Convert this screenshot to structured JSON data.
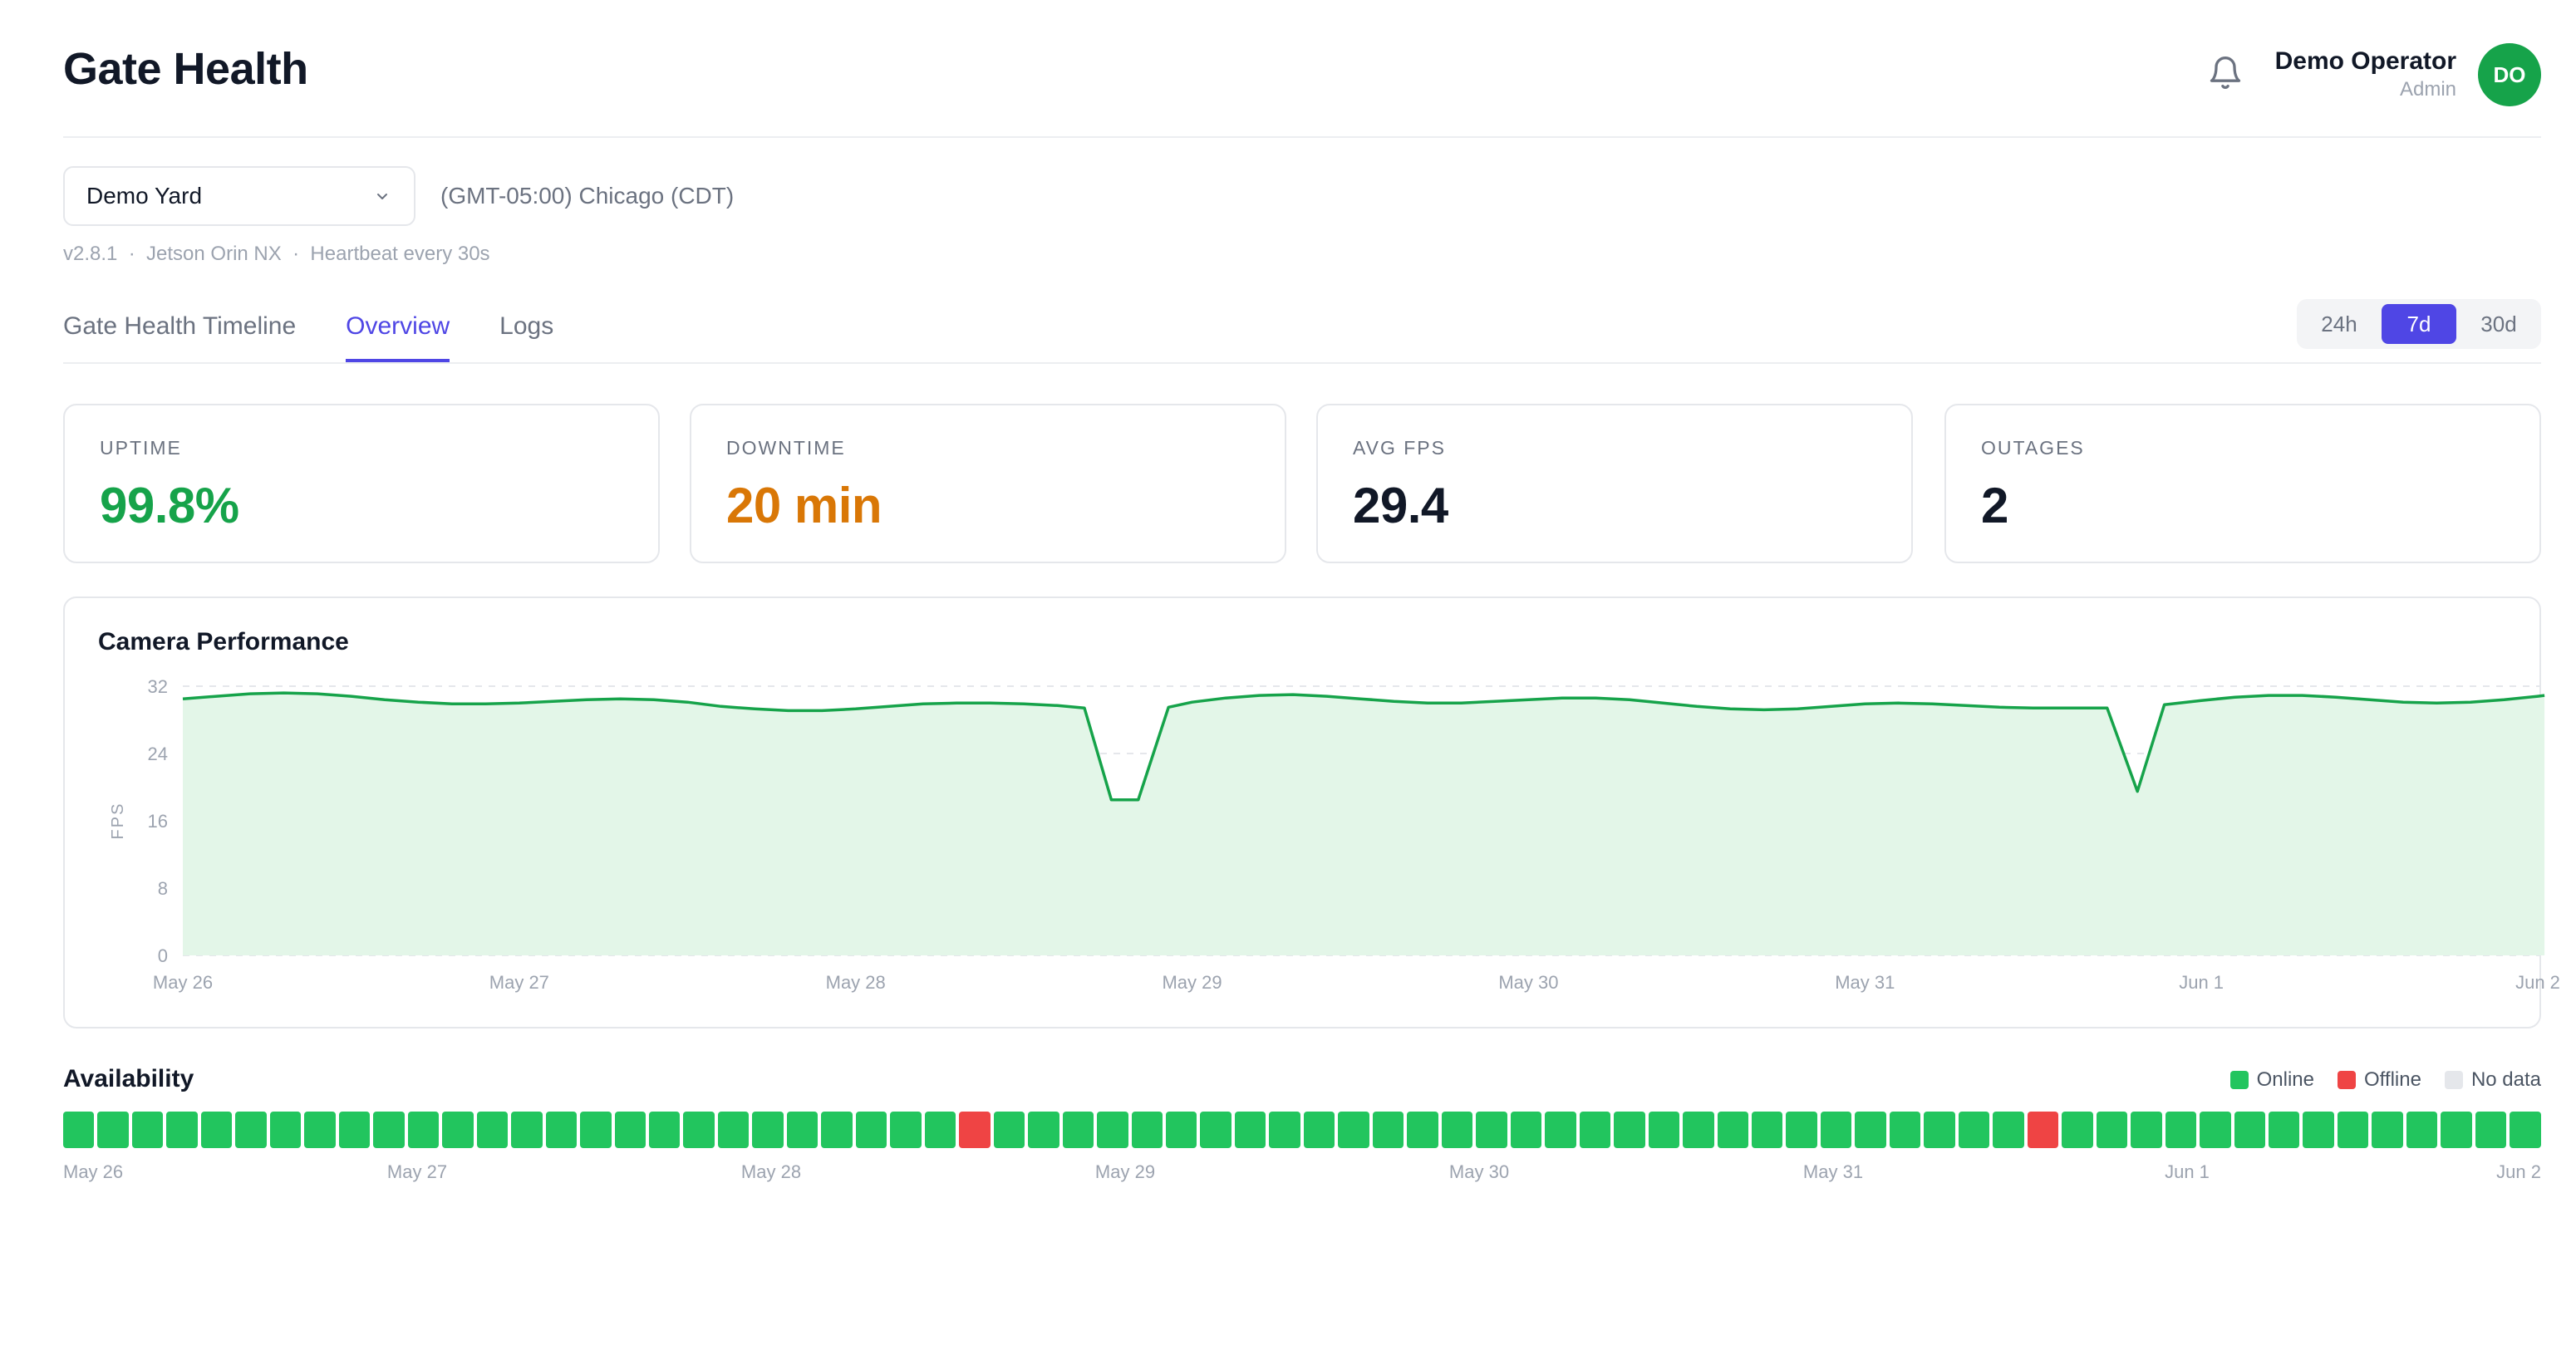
{
  "header": {
    "title": "Gate Health",
    "bell_icon": "bell-icon",
    "user_name": "Demo Operator",
    "user_role": "Admin",
    "avatar_initials": "DO",
    "avatar_color": "#16a34a"
  },
  "site": {
    "selected": "Demo Yard",
    "timezone": "(GMT-05:00) Chicago (CDT)",
    "meta": "v2.8.1  ·  Jetson Orin NX  ·  Heartbeat every 30s"
  },
  "tabs": [
    {
      "label": "Gate Health Timeline",
      "active": false
    },
    {
      "label": "Overview",
      "active": true
    },
    {
      "label": "Logs",
      "active": false
    }
  ],
  "range": {
    "options": [
      "24h",
      "7d",
      "30d"
    ],
    "selected": "7d"
  },
  "stats": [
    {
      "label": "UPTIME",
      "value": "99.8%",
      "color": "#16a34a"
    },
    {
      "label": "DOWNTIME",
      "value": "20 min",
      "color": "#d97706"
    },
    {
      "label": "AVG FPS",
      "value": "29.4",
      "color": "#111827"
    },
    {
      "label": "OUTAGES",
      "value": "2",
      "color": "#111827"
    }
  ],
  "chart_data": {
    "type": "area",
    "title": "Camera Performance",
    "ylabel": "FPS",
    "xlabel": "",
    "ylim": [
      0,
      32
    ],
    "yticks": [
      0,
      8,
      16,
      24,
      32
    ],
    "xlim": [
      0,
      7.02
    ],
    "xticks": [
      "May 26",
      "May 27",
      "May 28",
      "May 29",
      "May 30",
      "May 31",
      "Jun 1",
      "Jun 2"
    ],
    "grid": true,
    "color": "#16a34a",
    "fill": "#e3f6e8",
    "x": [
      0,
      0.1,
      0.2,
      0.3,
      0.4,
      0.5,
      0.6,
      0.7,
      0.8,
      0.9,
      1.0,
      1.1,
      1.2,
      1.3,
      1.4,
      1.5,
      1.6,
      1.7,
      1.8,
      1.9,
      2.0,
      2.1,
      2.2,
      2.3,
      2.4,
      2.5,
      2.6,
      2.68,
      2.76,
      2.84,
      2.93,
      3.0,
      3.1,
      3.2,
      3.3,
      3.4,
      3.5,
      3.6,
      3.7,
      3.8,
      3.9,
      4.0,
      4.1,
      4.2,
      4.3,
      4.4,
      4.5,
      4.6,
      4.7,
      4.8,
      4.9,
      5.0,
      5.1,
      5.2,
      5.3,
      5.4,
      5.5,
      5.6,
      5.72,
      5.81,
      5.89,
      6.0,
      6.1,
      6.2,
      6.3,
      6.4,
      6.5,
      6.6,
      6.7,
      6.8,
      6.9,
      7.0,
      7.02
    ],
    "y": [
      30.5,
      30.8,
      31.1,
      31.2,
      31.1,
      30.8,
      30.4,
      30.1,
      29.9,
      29.9,
      30.0,
      30.2,
      30.4,
      30.5,
      30.4,
      30.1,
      29.6,
      29.3,
      29.1,
      29.1,
      29.3,
      29.6,
      29.9,
      30.0,
      30.0,
      29.9,
      29.7,
      29.4,
      18.5,
      18.5,
      29.5,
      30.1,
      30.6,
      30.9,
      31.0,
      30.8,
      30.5,
      30.2,
      30.0,
      30.0,
      30.2,
      30.4,
      30.6,
      30.6,
      30.4,
      30.0,
      29.6,
      29.3,
      29.2,
      29.3,
      29.6,
      29.9,
      30.0,
      29.9,
      29.7,
      29.5,
      29.4,
      29.4,
      29.4,
      19.5,
      29.8,
      30.3,
      30.7,
      30.9,
      30.9,
      30.7,
      30.4,
      30.1,
      30.0,
      30.1,
      30.4,
      30.8,
      30.9
    ]
  },
  "availability": {
    "title": "Availability",
    "legend": [
      {
        "label": "Online",
        "color": "#22c55e"
      },
      {
        "label": "Offline",
        "color": "#ef4444"
      },
      {
        "label": "No data",
        "color": "#e5e7eb"
      }
    ],
    "blocks": [
      "online",
      "online",
      "online",
      "online",
      "online",
      "online",
      "online",
      "online",
      "online",
      "online",
      "online",
      "online",
      "online",
      "online",
      "online",
      "online",
      "online",
      "online",
      "online",
      "online",
      "online",
      "online",
      "online",
      "online",
      "online",
      "online",
      "offline",
      "online",
      "online",
      "online",
      "online",
      "online",
      "online",
      "online",
      "online",
      "online",
      "online",
      "online",
      "online",
      "online",
      "online",
      "online",
      "online",
      "online",
      "online",
      "online",
      "online",
      "online",
      "online",
      "online",
      "online",
      "online",
      "online",
      "online",
      "online",
      "online",
      "online",
      "offline",
      "online",
      "online",
      "online",
      "online",
      "online",
      "online",
      "online",
      "online",
      "online",
      "online",
      "online",
      "online",
      "online",
      "online"
    ],
    "labels": [
      "May 26",
      "May 27",
      "May 28",
      "May 29",
      "May 30",
      "May 31",
      "Jun 1",
      "Jun 2"
    ]
  }
}
